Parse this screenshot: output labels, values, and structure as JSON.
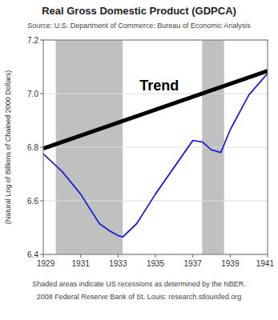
{
  "chart_data": {
    "type": "line",
    "title": "Real Gross Domestic Product (GDPCA)",
    "subtitle": "Source: U.S. Department of Commerce: Bureau of Economic Analysis",
    "y_label": "(Natural Log of Billions of Chained 2000 Dollars)",
    "notes": [
      "Shaded areas indicate US recessions as determined by the NBER.",
      "2008 Federal Reserve Bank of St. Louis: research.stlouisfed.org"
    ],
    "xlim": [
      1929,
      1941
    ],
    "ylim": [
      6.4,
      7.2
    ],
    "xticks": [
      1929,
      1931,
      1933,
      1935,
      1937,
      1939,
      1941
    ],
    "yticks": [
      6.4,
      6.6,
      6.8,
      {
        "value": 7.0,
        "label": "7.0"
      },
      7.2
    ],
    "grid": "y",
    "recessions": {
      "color": "#c0c0c0",
      "spans": [
        [
          1929.67,
          1933.25
        ],
        [
          1937.5,
          1938.67
        ]
      ]
    },
    "series": [
      {
        "color": "#2222cc",
        "x": [
          1929,
          1930,
          1931,
          1932,
          1932.5,
          1933,
          1933.25,
          1934,
          1935,
          1936,
          1936.5,
          1937,
          1937.5,
          1938,
          1938.5,
          1939,
          1940,
          1941
        ],
        "values": [
          6.775,
          6.71,
          6.625,
          6.515,
          6.49,
          6.47,
          6.465,
          6.515,
          6.625,
          6.725,
          6.775,
          6.825,
          6.82,
          6.79,
          6.78,
          6.865,
          6.995,
          7.075
        ]
      },
      {
        "color": "#000000",
        "x": [
          1929,
          1941
        ],
        "values": [
          6.795,
          7.085
        ]
      }
    ],
    "annotations": [
      {
        "text": "Trend",
        "x": 1935.2,
        "y": 7.03
      }
    ]
  }
}
